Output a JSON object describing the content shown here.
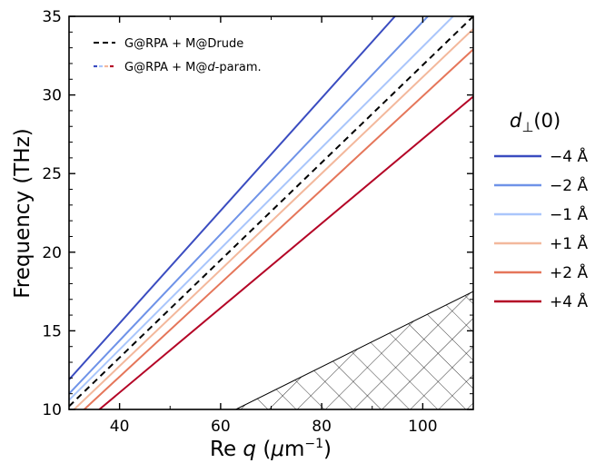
{
  "chart_data": {
    "type": "line",
    "xlabel": "Re q (μm⁻¹)",
    "ylabel": "Frequency (THz)",
    "xlim": [
      30,
      110
    ],
    "ylim": [
      10,
      35
    ],
    "xticks": [
      40,
      60,
      80,
      100
    ],
    "yticks": [
      10,
      15,
      20,
      25,
      30,
      35
    ],
    "grid": false,
    "legend_inner": {
      "placement": "top-left",
      "entries": [
        {
          "label": "G@RPA + M@Drude",
          "style": "dashed",
          "color": "#000000"
        },
        {
          "label": "G@RPA + M@d-param.",
          "style": "multicolor-dashed",
          "color": "#6b8fe0"
        }
      ]
    },
    "legend_right": {
      "title": "d⊥(0)",
      "placement": "right-outside",
      "entries": [
        {
          "label": "−4 Å",
          "color": "#3a4cc0"
        },
        {
          "label": "−2 Å",
          "color": "#6f93e8"
        },
        {
          "label": "−1 Å",
          "color": "#aac6fb"
        },
        {
          "label": "+1 Å",
          "color": "#f3b89c"
        },
        {
          "label": "+2 Å",
          "color": "#e5765a"
        },
        {
          "label": "+4 Å",
          "color": "#b40426"
        }
      ]
    },
    "series": [
      {
        "name": "G@RPA + M@Drude",
        "color": "#000000",
        "dashed": true,
        "x": [
          30,
          110
        ],
        "y": [
          10.2,
          35.0
        ]
      },
      {
        "name": "−4 Å",
        "color": "#3a4cc0",
        "dashed": false,
        "x": [
          30,
          94.5
        ],
        "y": [
          11.9,
          35.0
        ]
      },
      {
        "name": "−2 Å",
        "color": "#6f93e8",
        "dashed": false,
        "x": [
          30,
          101
        ],
        "y": [
          11.0,
          35.0
        ]
      },
      {
        "name": "−1 Å",
        "color": "#aac6fb",
        "dashed": false,
        "x": [
          30,
          106
        ],
        "y": [
          10.6,
          35.0
        ]
      },
      {
        "name": "+1 Å",
        "color": "#f3b89c",
        "dashed": false,
        "x": [
          31,
          110
        ],
        "y": [
          10.0,
          34.2
        ]
      },
      {
        "name": "+2 Å",
        "color": "#e5765a",
        "dashed": false,
        "x": [
          33,
          110
        ],
        "y": [
          10.0,
          32.9
        ]
      },
      {
        "name": "+4 Å",
        "color": "#b40426",
        "dashed": false,
        "x": [
          36,
          110
        ],
        "y": [
          10.0,
          29.9
        ]
      }
    ],
    "hatched_region": {
      "description": "light cone region",
      "boundary": {
        "x": [
          63,
          110
        ],
        "y": [
          10,
          17.5
        ]
      }
    }
  }
}
